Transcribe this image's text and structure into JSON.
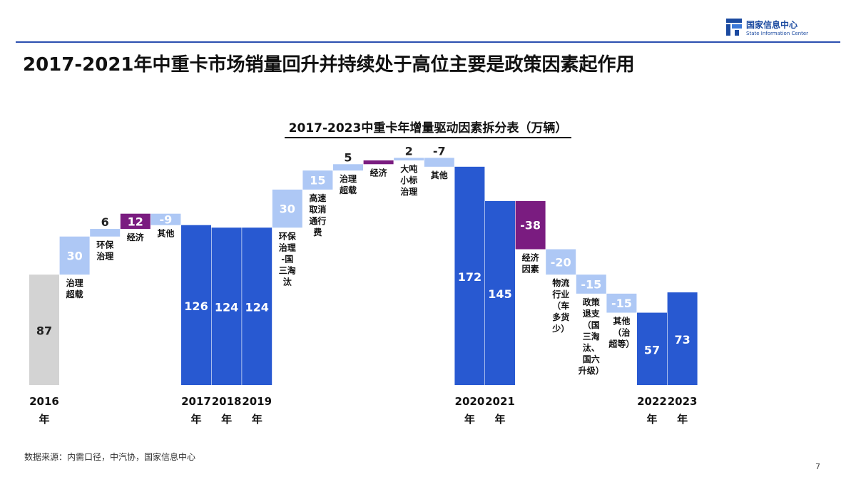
{
  "header": {
    "logo_cn": "国家信息中心",
    "logo_en": "State Information Center",
    "title": "2017-2021年中重卡市场销量回升并持续处于高位主要是政策因素起作用"
  },
  "footer": {
    "source": "数据来源：内需口径，中汽协，国家信息中心",
    "page": "7"
  },
  "colors": {
    "year_bar": "#2859d1",
    "base_bar": "#d3d3d3",
    "increment": "#aec8f5",
    "economy": "#7a1c80",
    "decrement": "#aec8f5",
    "brand": "#1b4aa0"
  },
  "chart_data": {
    "type": "bar",
    "subtype": "waterfall",
    "title": "2017-2023中重卡年增量驱动因素拆分表（万辆）",
    "unit": "万辆",
    "items": [
      {
        "kind": "total",
        "value": 87,
        "label": "87",
        "year": [
          "2016",
          "年"
        ]
      },
      {
        "kind": "delta",
        "value": 30,
        "label": "30",
        "caption": [
          "治理",
          "超载"
        ],
        "cat": "policy"
      },
      {
        "kind": "delta",
        "value": 6,
        "label": "6",
        "caption": [
          "环保",
          "治理"
        ],
        "cat": "policy"
      },
      {
        "kind": "delta",
        "value": 12,
        "label": "12",
        "caption": [
          "经济"
        ],
        "cat": "economy"
      },
      {
        "kind": "delta",
        "value": -9,
        "label": "-9",
        "caption": [
          "其他"
        ],
        "cat": "policy"
      },
      {
        "kind": "total",
        "value": 126,
        "label": "126",
        "year": [
          "2017",
          "年"
        ]
      },
      {
        "kind": "total",
        "value": 124,
        "label": "124",
        "year": [
          "2018",
          "年"
        ]
      },
      {
        "kind": "total",
        "value": 124,
        "label": "124",
        "year": [
          "2019",
          "年"
        ]
      },
      {
        "kind": "delta",
        "value": 30,
        "label": "30",
        "caption": [
          "环保",
          "治理",
          "-国",
          "三淘",
          "汰"
        ],
        "cat": "policy"
      },
      {
        "kind": "delta",
        "value": 15,
        "label": "15",
        "caption": [
          "高速",
          "取消",
          "通行",
          "费"
        ],
        "cat": "policy"
      },
      {
        "kind": "delta",
        "value": 5,
        "label": "5",
        "caption": [
          "治理",
          "超载"
        ],
        "cat": "policy"
      },
      {
        "kind": "delta",
        "value": 3,
        "label": "",
        "caption": [
          "经济"
        ],
        "cat": "economy"
      },
      {
        "kind": "delta",
        "value": 2,
        "label": "2",
        "caption": [
          "大吨",
          "小标",
          "治理"
        ],
        "cat": "policy"
      },
      {
        "kind": "delta",
        "value": -7,
        "label": "-7",
        "caption": [
          "其他"
        ],
        "cat": "policy"
      },
      {
        "kind": "total",
        "value": 172,
        "label": "172",
        "year": [
          "2020",
          "年"
        ]
      },
      {
        "kind": "total",
        "value": 145,
        "label": "145",
        "year": [
          "2021",
          "年"
        ]
      },
      {
        "kind": "delta",
        "value": -38,
        "label": "-38",
        "caption": [
          "经济",
          "因素"
        ],
        "cat": "economy"
      },
      {
        "kind": "delta",
        "value": -20,
        "label": "-20",
        "caption": [
          "物流",
          "行业",
          "（车",
          "多货",
          "少）"
        ],
        "cat": "policy"
      },
      {
        "kind": "delta",
        "value": -15,
        "label": "-15",
        "caption": [
          "政策",
          "退支",
          "（国",
          "三淘",
          "汰、",
          "国六",
          "升级）"
        ],
        "cat": "policy"
      },
      {
        "kind": "delta",
        "value": -15,
        "label": "-15",
        "caption": [
          "其他",
          "（治",
          "超等）"
        ],
        "cat": "policy"
      },
      {
        "kind": "total",
        "value": 57,
        "label": "57",
        "year": [
          "2022",
          "年"
        ]
      },
      {
        "kind": "total",
        "value": 73,
        "label": "73",
        "year": [
          "2023",
          "年"
        ]
      }
    ]
  }
}
